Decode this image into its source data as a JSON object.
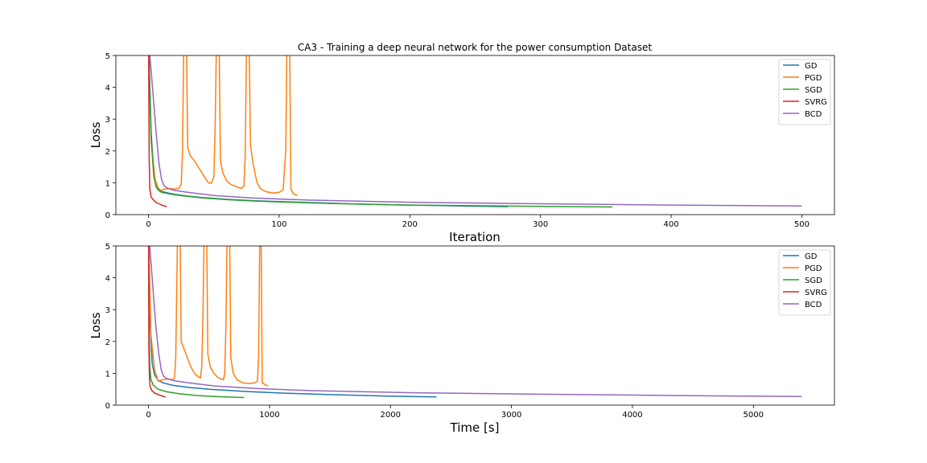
{
  "chart_data": [
    {
      "type": "line",
      "title": "CA3 - Training a deep neural network for the power consumption Dataset",
      "xlabel": "Iteration",
      "ylabel": "Loss",
      "xlim": [
        -25,
        525
      ],
      "ylim": [
        0,
        5
      ],
      "xticks": [
        0,
        100,
        200,
        300,
        400,
        500
      ],
      "yticks": [
        0,
        1,
        2,
        3,
        4,
        5
      ],
      "legend_position": "top-right",
      "series": [
        {
          "name": "GD",
          "color": "#1f77b4",
          "points": [
            [
              0,
              5.5
            ],
            [
              2,
              2.6
            ],
            [
              4,
              1.3
            ],
            [
              6,
              0.95
            ],
            [
              8,
              0.8
            ],
            [
              10,
              0.73
            ],
            [
              15,
              0.68
            ],
            [
              20,
              0.64
            ],
            [
              30,
              0.58
            ],
            [
              40,
              0.54
            ],
            [
              60,
              0.48
            ],
            [
              80,
              0.44
            ],
            [
              100,
              0.41
            ],
            [
              130,
              0.37
            ],
            [
              160,
              0.33
            ],
            [
              200,
              0.3
            ],
            [
              240,
              0.27
            ],
            [
              275,
              0.25
            ]
          ]
        },
        {
          "name": "PGD",
          "color": "#ff7f0e",
          "points": [
            [
              0,
              5.5
            ],
            [
              2,
              2.3
            ],
            [
              5,
              1.1
            ],
            [
              8,
              0.75
            ],
            [
              12,
              0.8
            ],
            [
              16,
              0.82
            ],
            [
              20,
              0.8
            ],
            [
              23,
              0.82
            ],
            [
              25,
              0.95
            ],
            [
              26,
              2.0
            ],
            [
              27,
              5.5
            ],
            [
              29,
              5.5
            ],
            [
              30,
              2.1
            ],
            [
              32,
              1.85
            ],
            [
              35,
              1.7
            ],
            [
              38,
              1.5
            ],
            [
              41,
              1.3
            ],
            [
              44,
              1.1
            ],
            [
              46,
              1.0
            ],
            [
              48,
              0.98
            ],
            [
              50,
              1.2
            ],
            [
              51,
              2.8
            ],
            [
              52,
              5.5
            ],
            [
              54,
              5.5
            ],
            [
              55,
              1.7
            ],
            [
              57,
              1.3
            ],
            [
              60,
              1.05
            ],
            [
              63,
              0.95
            ],
            [
              66,
              0.9
            ],
            [
              69,
              0.85
            ],
            [
              71,
              0.82
            ],
            [
              73,
              0.9
            ],
            [
              74,
              1.8
            ],
            [
              75,
              5.5
            ],
            [
              77,
              5.5
            ],
            [
              78,
              2.2
            ],
            [
              80,
              1.6
            ],
            [
              83,
              1.0
            ],
            [
              86,
              0.8
            ],
            [
              90,
              0.72
            ],
            [
              95,
              0.68
            ],
            [
              100,
              0.7
            ],
            [
              103,
              0.78
            ],
            [
              105,
              2.0
            ],
            [
              106,
              5.5
            ],
            [
              107,
              5.5
            ],
            [
              108,
              5.5
            ],
            [
              109,
              0.8
            ],
            [
              111,
              0.65
            ],
            [
              114,
              0.6
            ]
          ]
        },
        {
          "name": "SGD",
          "color": "#2ca02c",
          "points": [
            [
              0,
              5.5
            ],
            [
              2,
              2.4
            ],
            [
              4,
              1.2
            ],
            [
              6,
              0.85
            ],
            [
              8,
              0.75
            ],
            [
              10,
              0.7
            ],
            [
              15,
              0.66
            ],
            [
              20,
              0.62
            ],
            [
              30,
              0.57
            ],
            [
              40,
              0.53
            ],
            [
              60,
              0.47
            ],
            [
              80,
              0.43
            ],
            [
              100,
              0.4
            ],
            [
              130,
              0.36
            ],
            [
              160,
              0.33
            ],
            [
              200,
              0.3
            ],
            [
              250,
              0.28
            ],
            [
              300,
              0.26
            ],
            [
              355,
              0.24
            ]
          ]
        },
        {
          "name": "SVRG",
          "color": "#d62728",
          "points": [
            [
              0,
              5.5
            ],
            [
              0.5,
              1.8
            ],
            [
              1,
              0.8
            ],
            [
              2,
              0.55
            ],
            [
              4,
              0.45
            ],
            [
              6,
              0.38
            ],
            [
              8,
              0.34
            ],
            [
              10,
              0.3
            ],
            [
              14,
              0.25
            ]
          ]
        },
        {
          "name": "BCD",
          "color": "#9467bd",
          "points": [
            [
              0,
              5.5
            ],
            [
              3,
              4.0
            ],
            [
              6,
              2.5
            ],
            [
              8,
              1.6
            ],
            [
              10,
              1.1
            ],
            [
              12,
              0.9
            ],
            [
              15,
              0.82
            ],
            [
              20,
              0.76
            ],
            [
              30,
              0.7
            ],
            [
              50,
              0.6
            ],
            [
              80,
              0.52
            ],
            [
              120,
              0.46
            ],
            [
              200,
              0.39
            ],
            [
              300,
              0.34
            ],
            [
              400,
              0.3
            ],
            [
              500,
              0.27
            ]
          ]
        }
      ]
    },
    {
      "type": "line",
      "title": "",
      "xlabel": "Time [s]",
      "ylabel": "Loss",
      "xlim": [
        -270,
        5670
      ],
      "ylim": [
        0,
        5
      ],
      "xticks": [
        0,
        1000,
        2000,
        3000,
        4000,
        5000
      ],
      "yticks": [
        0,
        1,
        2,
        3,
        4,
        5
      ],
      "legend_position": "top-right",
      "series": [
        {
          "name": "GD",
          "color": "#1f77b4",
          "points": [
            [
              0,
              5.5
            ],
            [
              15,
              2.5
            ],
            [
              30,
              1.3
            ],
            [
              50,
              0.95
            ],
            [
              80,
              0.78
            ],
            [
              120,
              0.7
            ],
            [
              200,
              0.62
            ],
            [
              350,
              0.55
            ],
            [
              500,
              0.5
            ],
            [
              800,
              0.43
            ],
            [
              1100,
              0.38
            ],
            [
              1500,
              0.33
            ],
            [
              2000,
              0.28
            ],
            [
              2380,
              0.26
            ]
          ]
        },
        {
          "name": "PGD",
          "color": "#ff7f0e",
          "points": [
            [
              0,
              5.5
            ],
            [
              20,
              2.2
            ],
            [
              50,
              1.1
            ],
            [
              80,
              0.75
            ],
            [
              120,
              0.8
            ],
            [
              160,
              0.82
            ],
            [
              200,
              0.8
            ],
            [
              215,
              0.85
            ],
            [
              225,
              1.5
            ],
            [
              240,
              5.5
            ],
            [
              260,
              5.5
            ],
            [
              270,
              2.0
            ],
            [
              290,
              1.8
            ],
            [
              320,
              1.5
            ],
            [
              350,
              1.2
            ],
            [
              380,
              1.0
            ],
            [
              410,
              0.9
            ],
            [
              430,
              0.85
            ],
            [
              440,
              1.2
            ],
            [
              450,
              2.8
            ],
            [
              460,
              5.5
            ],
            [
              480,
              5.5
            ],
            [
              490,
              1.6
            ],
            [
              510,
              1.2
            ],
            [
              540,
              1.0
            ],
            [
              570,
              0.88
            ],
            [
              600,
              0.82
            ],
            [
              620,
              0.8
            ],
            [
              630,
              1.0
            ],
            [
              640,
              2.5
            ],
            [
              650,
              5.5
            ],
            [
              670,
              5.5
            ],
            [
              680,
              1.5
            ],
            [
              700,
              1.0
            ],
            [
              730,
              0.8
            ],
            [
              780,
              0.7
            ],
            [
              830,
              0.68
            ],
            [
              880,
              0.7
            ],
            [
              900,
              0.75
            ],
            [
              910,
              1.5
            ],
            [
              920,
              5.5
            ],
            [
              930,
              5.5
            ],
            [
              940,
              0.7
            ],
            [
              970,
              0.63
            ],
            [
              990,
              0.6
            ]
          ]
        },
        {
          "name": "SGD",
          "color": "#2ca02c",
          "points": [
            [
              0,
              5.5
            ],
            [
              5,
              2.3
            ],
            [
              10,
              1.2
            ],
            [
              20,
              0.8
            ],
            [
              40,
              0.62
            ],
            [
              80,
              0.5
            ],
            [
              150,
              0.42
            ],
            [
              250,
              0.36
            ],
            [
              400,
              0.3
            ],
            [
              550,
              0.27
            ],
            [
              700,
              0.25
            ],
            [
              790,
              0.24
            ]
          ]
        },
        {
          "name": "SVRG",
          "color": "#d62728",
          "points": [
            [
              0,
              5.5
            ],
            [
              3,
              1.8
            ],
            [
              8,
              0.8
            ],
            [
              15,
              0.55
            ],
            [
              30,
              0.45
            ],
            [
              50,
              0.38
            ],
            [
              80,
              0.33
            ],
            [
              110,
              0.29
            ],
            [
              140,
              0.25
            ]
          ]
        },
        {
          "name": "BCD",
          "color": "#9467bd",
          "points": [
            [
              0,
              5.5
            ],
            [
              30,
              4.0
            ],
            [
              60,
              2.5
            ],
            [
              85,
              1.6
            ],
            [
              105,
              1.1
            ],
            [
              125,
              0.9
            ],
            [
              160,
              0.82
            ],
            [
              220,
              0.76
            ],
            [
              330,
              0.7
            ],
            [
              550,
              0.6
            ],
            [
              900,
              0.52
            ],
            [
              1300,
              0.46
            ],
            [
              2200,
              0.39
            ],
            [
              3300,
              0.34
            ],
            [
              4400,
              0.3
            ],
            [
              5400,
              0.27
            ]
          ]
        }
      ]
    }
  ]
}
